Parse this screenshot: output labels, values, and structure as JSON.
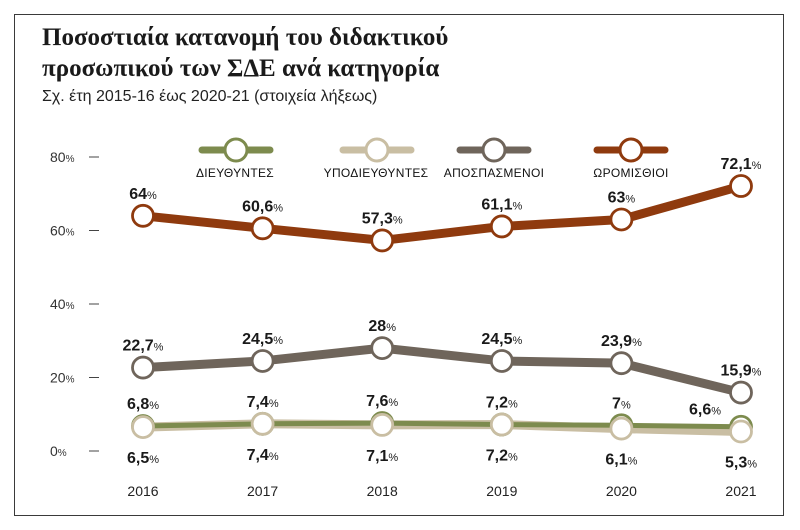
{
  "header": {
    "title_line1": "Ποσοστιαία κατανομή του διδακτικού",
    "title_line2": "προσωπικού των ΣΔΕ ανά κατηγορία",
    "subtitle": "Σχ. έτη 2015-16 έως 2020-21 (στοιχεία λήξεως)"
  },
  "chart_data": {
    "type": "line",
    "title": "Ποσοστιαία κατανομή του διδακτικού προσωπικού των ΣΔΕ ανά κατηγορία",
    "subtitle": "Σχ. έτη 2015-16 έως 2020-21 (στοιχεία λήξεως)",
    "x": [
      "2016",
      "2017",
      "2018",
      "2019",
      "2020",
      "2021"
    ],
    "ylim": [
      0,
      80
    ],
    "yticks": [
      {
        "value": 0,
        "num": "0",
        "unit": "%"
      },
      {
        "value": 20,
        "num": "20",
        "unit": "%"
      },
      {
        "value": 40,
        "num": "40",
        "unit": "%"
      },
      {
        "value": 60,
        "num": "60",
        "unit": "%"
      },
      {
        "value": 80,
        "num": "80",
        "unit": "%"
      }
    ],
    "grid": false,
    "legend": "top",
    "series": [
      {
        "name": "ΔΙΕΥΘΥΝΤΕΣ",
        "color": "#7d8b4e",
        "values": [
          6.8,
          7.4,
          7.6,
          7.2,
          7.0,
          6.6
        ],
        "labels": [
          "6,8",
          "7,4",
          "7,6",
          "7,2",
          "7",
          "6,6"
        ],
        "label_pos": [
          "above",
          "above",
          "above",
          "above",
          "above",
          "left"
        ]
      },
      {
        "name": "ΥΠΟΔΙΕΥΘΥΝΤΕΣ",
        "color": "#c9bea3",
        "values": [
          6.5,
          7.4,
          7.1,
          7.2,
          6.1,
          5.3
        ],
        "labels": [
          "6,5",
          "7,4",
          "7,1",
          "7,2",
          "6,1",
          "5,3"
        ],
        "label_pos": [
          "below",
          "below",
          "below",
          "below",
          "below",
          "below"
        ]
      },
      {
        "name": "ΑΠΟΣΠΑΣΜΕΝΟΙ",
        "color": "#6f655b",
        "values": [
          22.7,
          24.5,
          28.0,
          24.5,
          23.9,
          15.9
        ],
        "labels": [
          "22,7",
          "24,5",
          "28",
          "24,5",
          "23,9",
          "15,9"
        ],
        "label_pos": [
          "above",
          "above",
          "above",
          "above",
          "above",
          "above"
        ]
      },
      {
        "name": "ΩΡΟΜΙΣΘΙΟΙ",
        "color": "#8f3a0e",
        "values": [
          64.0,
          60.6,
          57.3,
          61.1,
          63.0,
          72.1
        ],
        "labels": [
          "64",
          "60,6",
          "57,3",
          "61,1",
          "63",
          "72,1"
        ],
        "label_pos": [
          "above",
          "above",
          "above",
          "above",
          "above",
          "above"
        ]
      }
    ],
    "value_unit": "%"
  }
}
